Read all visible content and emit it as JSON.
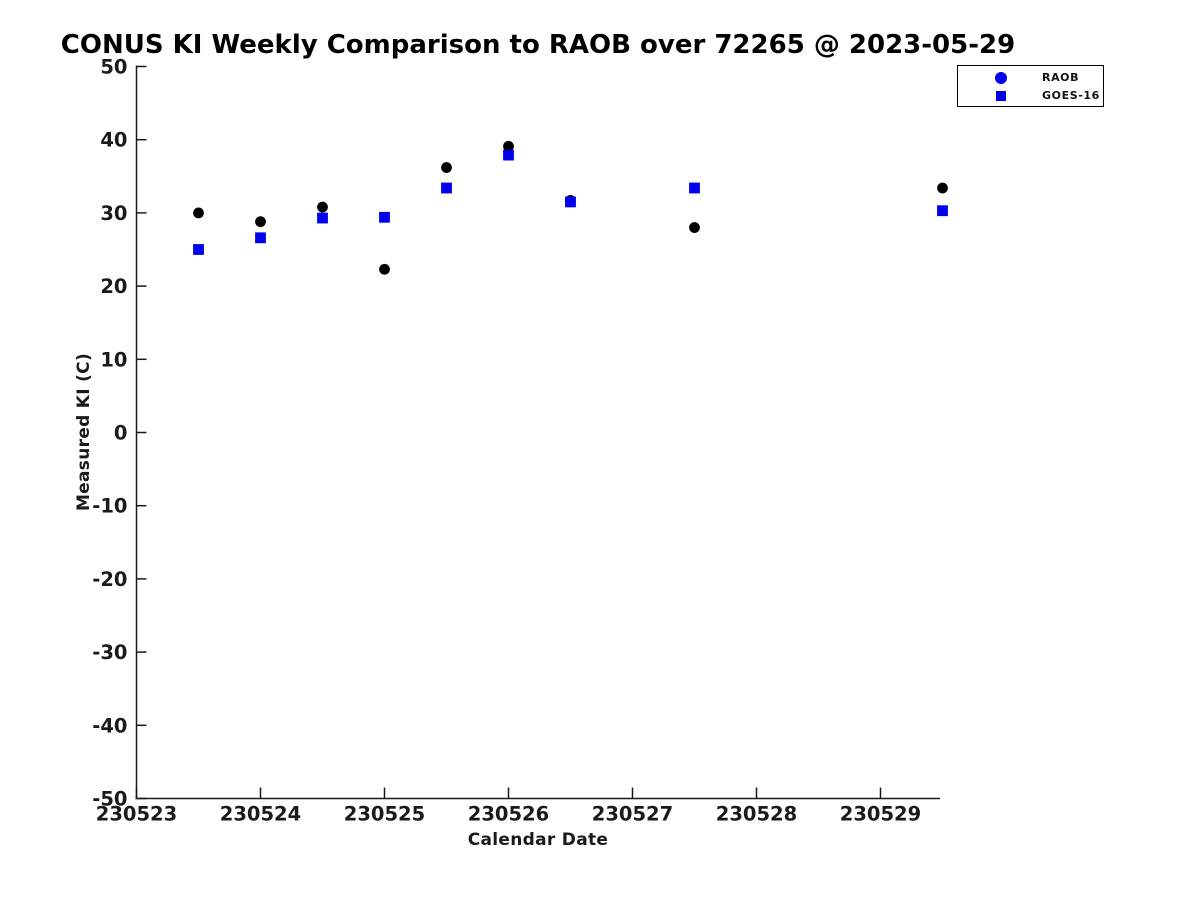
{
  "chart_data": {
    "type": "scatter",
    "title": "CONUS KI Weekly Comparison to RAOB over 72265 @ 2023-05-29",
    "xlabel": "Calendar Date",
    "ylabel": "Measured KI (C)",
    "xlim": [
      230523,
      230529.5
    ],
    "ylim": [
      -50,
      50
    ],
    "x_ticks": [
      "230523",
      "230524",
      "230525",
      "230526",
      "230527",
      "230528",
      "230529"
    ],
    "y_ticks": [
      "50",
      "40",
      "30",
      "20",
      "10",
      "0",
      "-10",
      "-20",
      "-30",
      "-40",
      "-50"
    ],
    "grid": false,
    "legend_position": "top-right-outside-plot",
    "axis_color": "#1a1a1a",
    "series": [
      {
        "name": "RAOB",
        "marker": "circle",
        "plot_color": "#000000",
        "legend_color": "#0000ee",
        "points": [
          [
            230523.5,
            30.0
          ],
          [
            230524.0,
            28.8
          ],
          [
            230524.5,
            30.8
          ],
          [
            230525.0,
            22.3
          ],
          [
            230525.5,
            36.2
          ],
          [
            230526.0,
            39.1
          ],
          [
            230526.5,
            31.7
          ],
          [
            230527.5,
            28.0
          ],
          [
            230529.5,
            33.4
          ]
        ]
      },
      {
        "name": "GOES-16",
        "marker": "square",
        "plot_color": "#0000ee",
        "legend_color": "#0000ee",
        "points": [
          [
            230523.5,
            25.0
          ],
          [
            230524.0,
            26.6
          ],
          [
            230524.5,
            29.3
          ],
          [
            230525.0,
            29.4
          ],
          [
            230525.5,
            33.4
          ],
          [
            230526.0,
            37.9
          ],
          [
            230526.5,
            31.5
          ],
          [
            230527.5,
            33.4
          ],
          [
            230529.5,
            30.3
          ]
        ]
      }
    ]
  }
}
